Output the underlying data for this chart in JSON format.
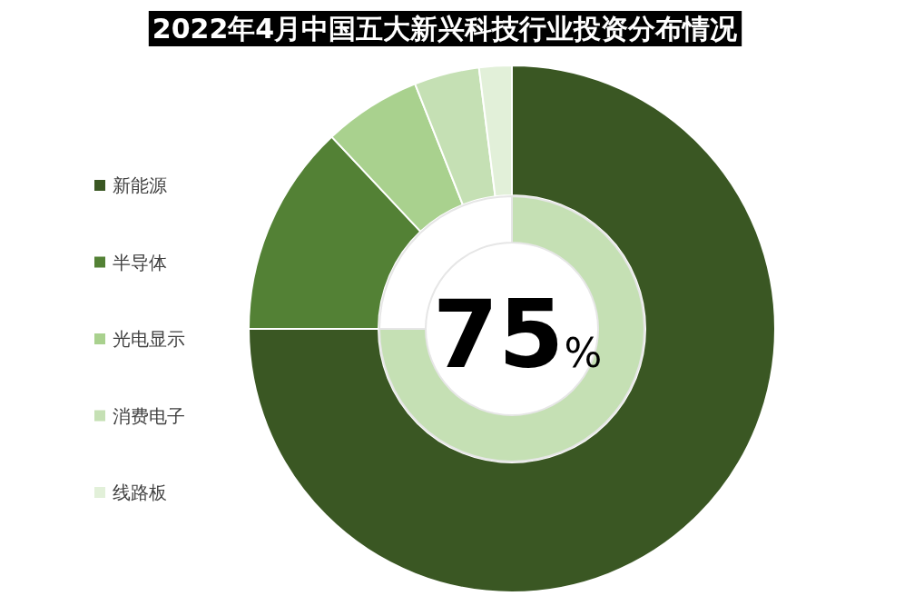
{
  "chart_data": [
    {
      "type": "donut",
      "title": "2022年4月中国五大新兴科技行业投资分布情况",
      "categories": [
        "新能源",
        "半导体",
        "光电显示",
        "消费电子",
        "线路板"
      ],
      "values": [
        75,
        13,
        6,
        4,
        2
      ],
      "colors": [
        "#3a5723",
        "#538135",
        "#a9d18e",
        "#c5e0b4",
        "#e2f0d9"
      ],
      "legend": "left"
    },
    {
      "type": "donut",
      "categories": [
        null,
        null
      ],
      "values": [
        75,
        25
      ],
      "colors": [
        "#c5e0b4",
        "#ffffff"
      ],
      "value_labels": [
        "75%",
        null
      ]
    }
  ]
}
